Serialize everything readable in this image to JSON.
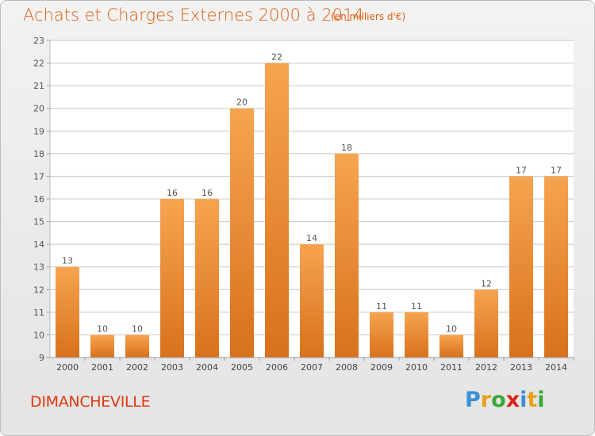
{
  "title": "Achats et Charges Externes 2000 à 2014",
  "subtitle": "(en milliers d'€)",
  "city": "DIMANCHEVILLE",
  "logo": {
    "text": "Proxiti",
    "letters": [
      {
        "ch": "P",
        "color": "#3a8fd6"
      },
      {
        "ch": "r",
        "color": "#e8a018"
      },
      {
        "ch": "o",
        "color": "#39a935"
      },
      {
        "ch": "x",
        "color": "#d62418"
      },
      {
        "ch": "i",
        "color": "#3a8fd6"
      },
      {
        "ch": "t",
        "color": "#e8a018"
      },
      {
        "ch": "i",
        "color": "#39a935"
      }
    ]
  },
  "colors": {
    "bar_top": "#f6a450",
    "bar_bottom": "#d8711c",
    "title": "#e06010",
    "grid": "#c8c8c8"
  },
  "chart_data": {
    "type": "bar",
    "title": "Achats et Charges Externes 2000 à 2014",
    "subtitle": "(en milliers d'€)",
    "categories": [
      "2000",
      "2001",
      "2002",
      "2003",
      "2004",
      "2005",
      "2006",
      "2007",
      "2008",
      "2009",
      "2010",
      "2011",
      "2012",
      "2013",
      "2014"
    ],
    "values": [
      13,
      10,
      10,
      16,
      16,
      20,
      22,
      14,
      18,
      11,
      11,
      10,
      12,
      17,
      17
    ],
    "ylim": [
      9,
      23
    ],
    "yticks": [
      9,
      10,
      11,
      12,
      13,
      14,
      15,
      16,
      17,
      18,
      19,
      20,
      21,
      22,
      23
    ],
    "grid": true,
    "data_labels": true
  }
}
